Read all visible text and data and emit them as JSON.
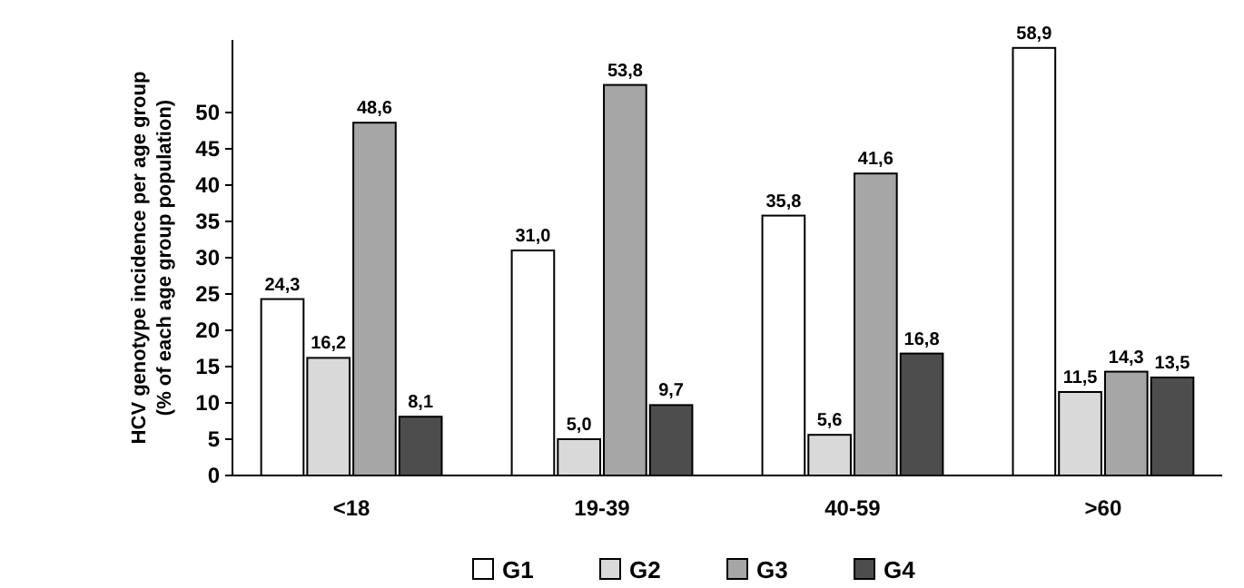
{
  "chart_data": {
    "type": "bar",
    "ylabel": "HCV genotype incidence per age group\n(% of each age group population)",
    "categories": [
      "<18",
      "19-39",
      "40-59",
      ">60"
    ],
    "series": [
      {
        "name": "G1",
        "color": "#ffffff",
        "values": [
          24.3,
          31.0,
          35.8,
          58.9
        ],
        "value_labels": [
          "24,3",
          "31,0",
          "35,8",
          "58,9"
        ]
      },
      {
        "name": "G2",
        "color": "#d9d9d9",
        "values": [
          16.2,
          5.0,
          5.6,
          11.5
        ],
        "value_labels": [
          "16,2",
          "5,0",
          "5,6",
          "11,5"
        ]
      },
      {
        "name": "G3",
        "color": "#a6a6a6",
        "values": [
          48.6,
          53.8,
          41.6,
          14.3
        ],
        "value_labels": [
          "48,6",
          "53,8",
          "41,6",
          "14,3"
        ]
      },
      {
        "name": "G4",
        "color": "#4d4d4d",
        "values": [
          8.1,
          9.7,
          16.8,
          13.5
        ],
        "value_labels": [
          "8,1",
          "9,7",
          "16,8",
          "13,5"
        ]
      }
    ],
    "ylim": [
      0,
      60
    ],
    "yticks": [
      0,
      5,
      10,
      15,
      20,
      25,
      30,
      35,
      40,
      45,
      50
    ],
    "grid": false,
    "legend": "bottom"
  }
}
